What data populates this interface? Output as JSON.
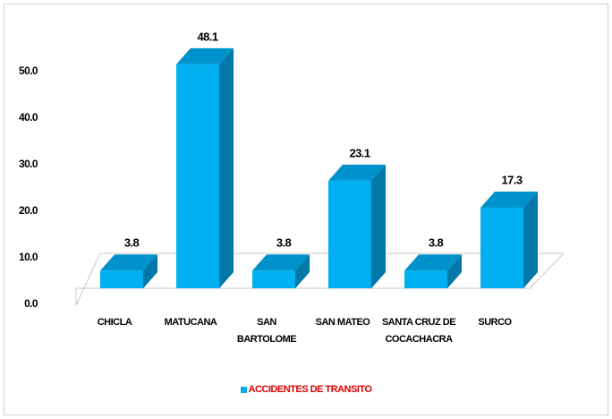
{
  "chart_data": {
    "type": "bar",
    "categories": [
      "CHICLA",
      "MATUCANA",
      "SAN BARTOLOME",
      "SAN MATEO",
      "SANTA CRUZ DE COCACHACRA",
      "SURCO"
    ],
    "series": [
      {
        "name": "ACCIDENTES DE TRANSITO",
        "color": "#00b0f0",
        "values": [
          3.8,
          48.1,
          3.8,
          23.1,
          3.8,
          17.3
        ]
      }
    ],
    "ylim": [
      0,
      50
    ],
    "yticks": [
      {
        "value": 0,
        "label": "0.0"
      },
      {
        "value": 10,
        "label": "10.0"
      },
      {
        "value": 20,
        "label": "20.0"
      },
      {
        "value": 30,
        "label": "30.0"
      },
      {
        "value": 40,
        "label": "40.0"
      },
      {
        "value": 50,
        "label": "50.0"
      }
    ],
    "grid": false,
    "legend": "bottom"
  }
}
